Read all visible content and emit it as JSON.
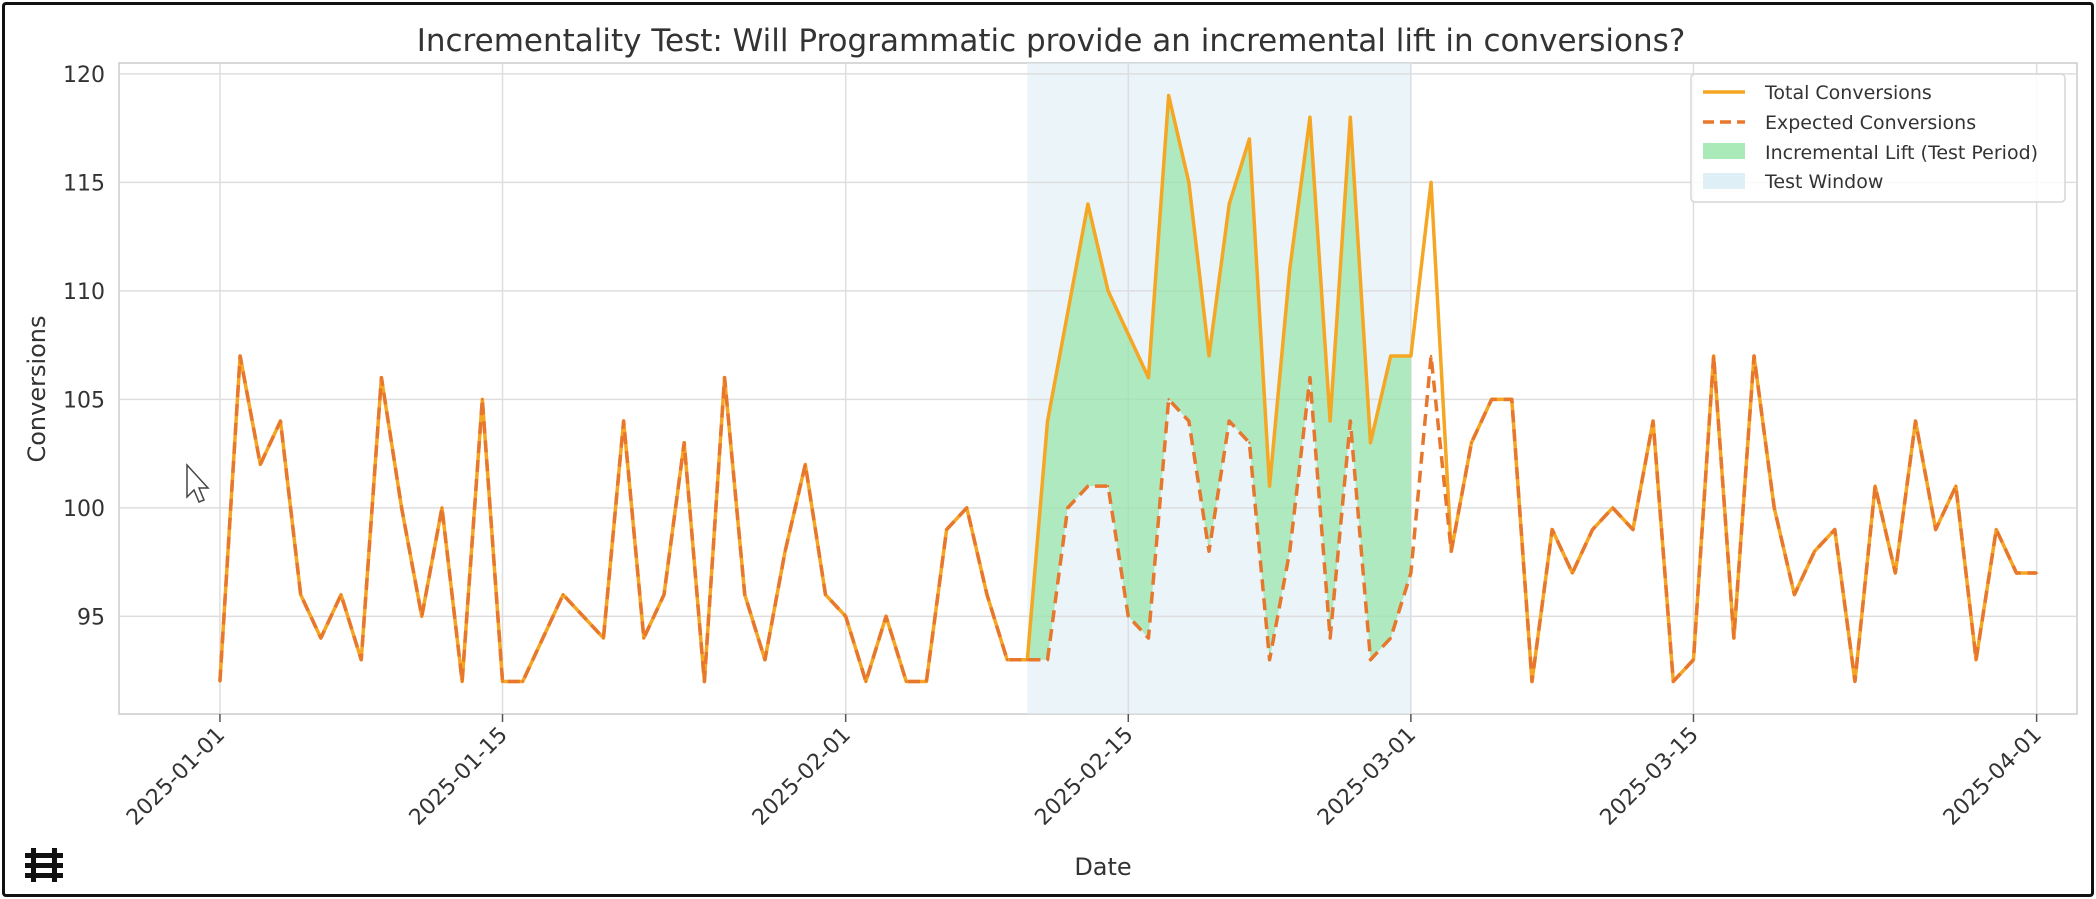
{
  "colors": {
    "total": "#f5a623",
    "expected": "#e8772e",
    "lift": "#8de3a2",
    "window": "#dcedf5",
    "grid": "#dedede"
  },
  "chart_data": {
    "type": "line",
    "title": "Incrementality Test: Will Programmatic provide an incremental lift in conversions?",
    "xlabel": "Date",
    "ylabel": "Conversions",
    "start_date": "2025-01-01",
    "xlim": [
      "2024-12-27",
      "2025-04-03"
    ],
    "ylim": [
      90.5,
      120.5
    ],
    "yticks": [
      95,
      100,
      105,
      110,
      115,
      120
    ],
    "xticks": [
      {
        "date": "2025-01-01",
        "label": "2025-01-01"
      },
      {
        "date": "2025-01-15",
        "label": "2025-01-15"
      },
      {
        "date": "2025-02-01",
        "label": "2025-02-01"
      },
      {
        "date": "2025-02-15",
        "label": "2025-02-15"
      },
      {
        "date": "2025-03-01",
        "label": "2025-03-01"
      },
      {
        "date": "2025-03-15",
        "label": "2025-03-15"
      },
      {
        "date": "2025-04-01",
        "label": "2025-04-01"
      }
    ],
    "test_window": {
      "start": "2025-02-10",
      "end": "2025-03-01"
    },
    "series": [
      {
        "name": "Total Conversions",
        "style": "solid",
        "values": [
          92,
          107,
          102,
          104,
          96,
          94,
          96,
          93,
          106,
          100,
          95,
          100,
          92,
          105,
          92,
          92,
          94,
          96,
          95,
          94,
          104,
          94,
          96,
          103,
          92,
          106,
          96,
          93,
          98,
          102,
          96,
          95,
          92,
          95,
          92,
          92,
          99,
          100,
          96,
          93,
          93,
          104,
          109,
          114,
          110,
          108,
          106,
          119,
          115,
          107,
          114,
          117,
          101,
          111,
          118,
          104,
          118,
          103,
          107,
          107,
          115,
          98,
          103,
          105,
          105,
          92,
          99,
          97,
          99,
          100,
          99,
          104,
          92,
          93,
          107,
          94,
          107,
          100,
          96,
          98,
          99,
          92,
          101,
          97,
          104,
          99,
          101,
          93,
          99,
          97,
          97
        ]
      },
      {
        "name": "Expected Conversions",
        "style": "dashed",
        "values": [
          92,
          107,
          102,
          104,
          96,
          94,
          96,
          93,
          106,
          100,
          95,
          100,
          92,
          105,
          92,
          92,
          94,
          96,
          95,
          94,
          104,
          94,
          96,
          103,
          92,
          106,
          96,
          93,
          98,
          102,
          96,
          95,
          92,
          95,
          92,
          92,
          99,
          100,
          96,
          93,
          93,
          93,
          100,
          101,
          101,
          95,
          94,
          105,
          104,
          98,
          104,
          103,
          93,
          98,
          106,
          94,
          104,
          93,
          94,
          97,
          107,
          98,
          103,
          105,
          105,
          92,
          99,
          97,
          99,
          100,
          99,
          104,
          92,
          93,
          107,
          94,
          107,
          100,
          96,
          98,
          99,
          92,
          101,
          97,
          104,
          99,
          101,
          93,
          99,
          97,
          97
        ]
      }
    ],
    "legend": {
      "position": "top-right",
      "entries": [
        "Total Conversions",
        "Expected Conversions",
        "Incremental Lift (Test Period)",
        "Test Window"
      ]
    }
  }
}
